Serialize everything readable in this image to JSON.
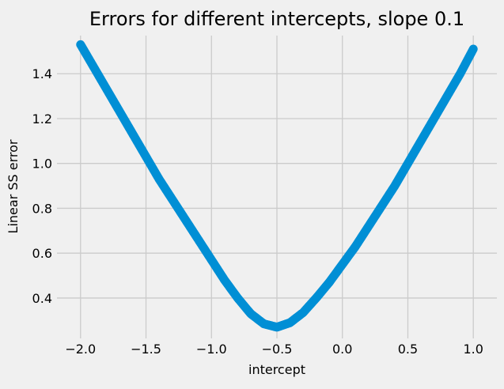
{
  "chart_data": {
    "type": "scatter",
    "title": "Errors for different intercepts, slope 0.1",
    "xlabel": "intercept",
    "ylabel": "Linear SS error",
    "xlim": [
      -2.18,
      1.18
    ],
    "ylim": [
      0.22,
      1.57
    ],
    "xticks": [
      -2.0,
      -1.5,
      -1.0,
      -0.5,
      0.0,
      0.5,
      1.0
    ],
    "xtick_labels": [
      "−2.0",
      "−1.5",
      "−1.0",
      "−0.5",
      "0.0",
      "0.5",
      "1.0"
    ],
    "yticks": [
      0.4,
      0.6,
      0.8,
      1.0,
      1.2,
      1.4
    ],
    "ytick_labels": [
      "0.4",
      "0.6",
      "0.8",
      "1.0",
      "1.2",
      "1.4"
    ],
    "grid": true,
    "series": [
      {
        "color": "#008fd5",
        "x": [
          -2.0,
          -1.9,
          -1.8,
          -1.7,
          -1.6,
          -1.5,
          -1.4,
          -1.3,
          -1.2,
          -1.1,
          -1.0,
          -0.9,
          -0.8,
          -0.7,
          -0.6,
          -0.5,
          -0.4,
          -0.3,
          -0.2,
          -0.1,
          0.0,
          0.1,
          0.2,
          0.3,
          0.4,
          0.5,
          0.6,
          0.7,
          0.8,
          0.9,
          1.0
        ],
        "y": [
          1.53,
          1.43,
          1.33,
          1.23,
          1.13,
          1.03,
          0.93,
          0.84,
          0.75,
          0.66,
          0.57,
          0.48,
          0.4,
          0.33,
          0.285,
          0.27,
          0.29,
          0.335,
          0.4,
          0.47,
          0.55,
          0.63,
          0.72,
          0.81,
          0.9,
          1.0,
          1.1,
          1.2,
          1.3,
          1.4,
          1.51
        ]
      }
    ]
  }
}
